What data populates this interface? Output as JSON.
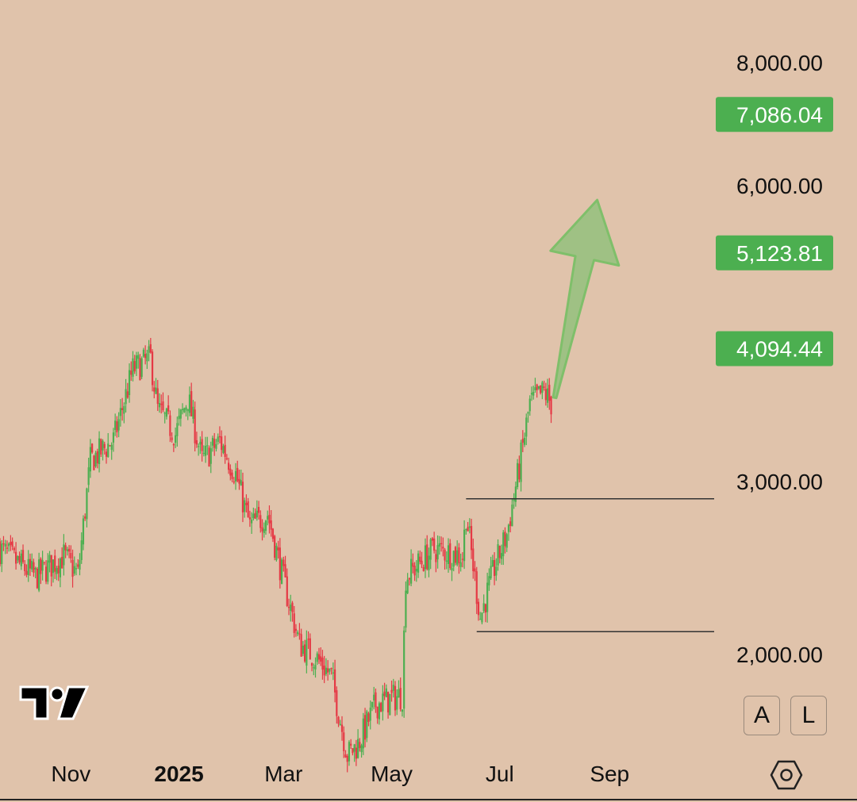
{
  "chart_data": {
    "type": "candlestick",
    "title": "",
    "xlabel": "",
    "ylabel": "",
    "scale": "log",
    "ylim": [
      1580,
      9500
    ],
    "y_ticks": [
      {
        "value": 8000,
        "label": "8,000.00"
      },
      {
        "value": 6000,
        "label": "6,000.00"
      },
      {
        "value": 3000,
        "label": "3,000.00"
      },
      {
        "value": 2000,
        "label": "2,000.00"
      }
    ],
    "price_tags": [
      {
        "value": 7086.04,
        "label": "7,086.04",
        "color": "#4caf50"
      },
      {
        "value": 5123.81,
        "label": "5,123.81",
        "color": "#4caf50"
      },
      {
        "value": 4094.44,
        "label": "4,094.44",
        "color": "#4caf50"
      }
    ],
    "x_labels": [
      {
        "date": "2024-11-01",
        "label": "Nov",
        "bold": false
      },
      {
        "date": "2025-01-01",
        "label": "2025",
        "bold": true
      },
      {
        "date": "2025-03-01",
        "label": "Mar",
        "bold": false
      },
      {
        "date": "2025-05-01",
        "label": "May",
        "bold": false
      },
      {
        "date": "2025-07-01",
        "label": "Jul",
        "bold": false
      },
      {
        "date": "2025-09-01",
        "label": "Sep",
        "bold": false
      }
    ],
    "xlim": [
      "2024-09-22",
      "2025-10-30"
    ],
    "key_points": [
      {
        "date": "2024-09-22",
        "close": 2560
      },
      {
        "date": "2024-10-12",
        "close": 2400
      },
      {
        "date": "2024-10-28",
        "close": 2520
      },
      {
        "date": "2024-11-05",
        "close": 2410
      },
      {
        "date": "2024-11-12",
        "close": 3150
      },
      {
        "date": "2024-11-25",
        "close": 3300
      },
      {
        "date": "2024-12-06",
        "close": 3900
      },
      {
        "date": "2024-12-16",
        "close": 4000
      },
      {
        "date": "2024-12-20",
        "close": 3550
      },
      {
        "date": "2024-12-30",
        "close": 3350
      },
      {
        "date": "2025-01-06",
        "close": 3650
      },
      {
        "date": "2025-01-14",
        "close": 3150
      },
      {
        "date": "2025-01-24",
        "close": 3300
      },
      {
        "date": "2025-02-02",
        "close": 3050
      },
      {
        "date": "2025-02-10",
        "close": 2700
      },
      {
        "date": "2025-02-20",
        "close": 2780
      },
      {
        "date": "2025-03-01",
        "close": 2380
      },
      {
        "date": "2025-03-10",
        "close": 2050
      },
      {
        "date": "2025-03-20",
        "close": 1980
      },
      {
        "date": "2025-03-28",
        "close": 1900
      },
      {
        "date": "2025-04-06",
        "close": 1580
      },
      {
        "date": "2025-04-12",
        "close": 1620
      },
      {
        "date": "2025-04-22",
        "close": 1780
      },
      {
        "date": "2025-05-07",
        "close": 1820
      },
      {
        "date": "2025-05-09",
        "close": 2400
      },
      {
        "date": "2025-05-25",
        "close": 2560
      },
      {
        "date": "2025-06-10",
        "close": 2520
      },
      {
        "date": "2025-06-12",
        "close": 2780
      },
      {
        "date": "2025-06-20",
        "close": 2180
      },
      {
        "date": "2025-06-28",
        "close": 2450
      },
      {
        "date": "2025-07-05",
        "close": 2650
      },
      {
        "date": "2025-07-12",
        "close": 3100
      },
      {
        "date": "2025-07-18",
        "close": 3600
      },
      {
        "date": "2025-07-26",
        "close": 3700
      },
      {
        "date": "2025-07-30",
        "close": 3600
      }
    ],
    "horizontal_levels": [
      {
        "value": 2880,
        "from": "2025-06-12",
        "to": "2025-10-30"
      },
      {
        "value": 2110,
        "from": "2025-06-18",
        "to": "2025-10-30"
      }
    ],
    "arrow": {
      "from": {
        "date": "2025-08-01",
        "value": 3650
      },
      "to": {
        "date": "2025-08-25",
        "value": 5800
      },
      "color": "#8fc17b"
    },
    "colors": {
      "up": "#4caf50",
      "down": "#e53945",
      "level": "#333333"
    }
  },
  "controls": {
    "auto_label": "A",
    "log_label": "L"
  }
}
